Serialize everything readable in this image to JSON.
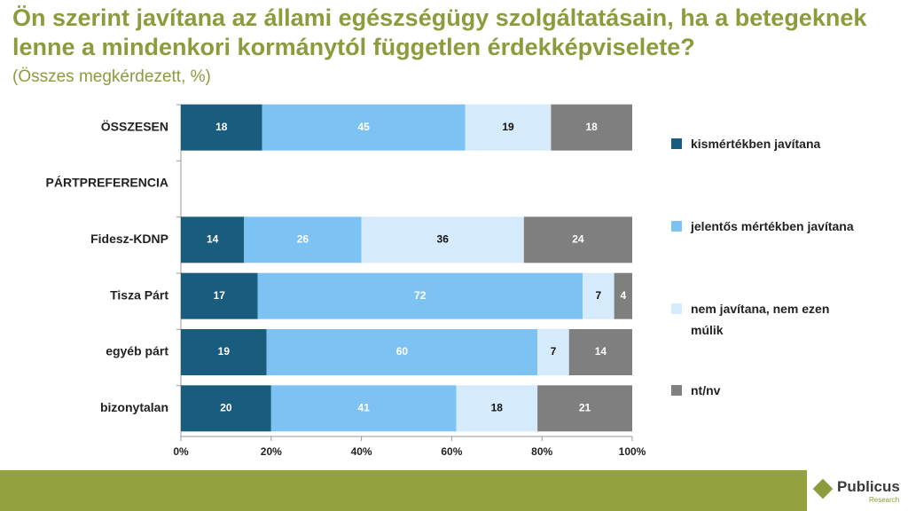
{
  "chart_data": {
    "type": "stacked-bar-horizontal",
    "title": "Ön szerint javítana az állami egészségügy szolgáltatásain, ha a betegeknek lenne a mindenkori kormánytól független érdekképviselete?",
    "subtitle": "(Összes megkérdezett, %)",
    "categories": [
      "ÖSSZESEN",
      "PÁRTPREFERENCIA",
      "Fidesz-KDNP",
      "Tisza Párt",
      "egyéb párt",
      "bizonytalan"
    ],
    "series": [
      {
        "name": "kismértékben javítana",
        "color": "#1a5c7e",
        "values": [
          18,
          null,
          14,
          17,
          19,
          20
        ]
      },
      {
        "name": "jelentős mértékben javítana",
        "color": "#7cc3f4",
        "values": [
          45,
          null,
          26,
          72,
          60,
          41
        ]
      },
      {
        "name": "nem javítana, nem ezen múlik",
        "color": "#d5eafa",
        "values": [
          19,
          null,
          36,
          7,
          7,
          18
        ]
      },
      {
        "name": "nt/nv",
        "color": "#7f7f7f",
        "values": [
          18,
          null,
          24,
          4,
          14,
          21
        ]
      }
    ],
    "xlim": [
      0,
      100
    ],
    "xticks": [
      {
        "value": 0,
        "label": "0%"
      },
      {
        "value": 20,
        "label": "20%"
      },
      {
        "value": 40,
        "label": "40%"
      },
      {
        "value": 60,
        "label": "60%"
      },
      {
        "value": 80,
        "label": "80%"
      },
      {
        "value": 100,
        "label": "100%"
      }
    ]
  },
  "logo": {
    "name": "Publicus",
    "sub": "Research"
  }
}
